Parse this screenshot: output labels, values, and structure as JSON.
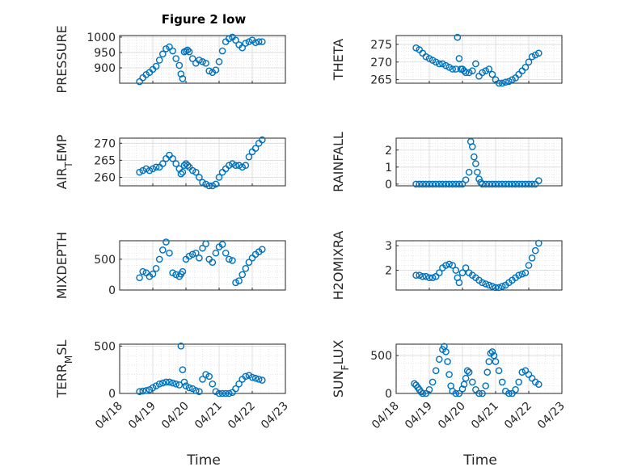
{
  "figure_title": "Figure 2 low",
  "x_axis_title": "Time",
  "marker_color": "#0072BD",
  "chart_data": [
    {
      "type": "scatter",
      "ylabel": "PRESSURE",
      "xlim": [
        "04/18",
        "04/23"
      ],
      "ylim": [
        850,
        1005
      ],
      "yticks": [
        900,
        950,
        1000
      ],
      "x": [
        0.6,
        0.7,
        0.8,
        0.9,
        1.0,
        1.1,
        1.2,
        1.3,
        1.4,
        1.5,
        1.6,
        1.7,
        1.8,
        1.85,
        1.9,
        1.95,
        2.0,
        2.05,
        2.1,
        2.2,
        2.3,
        2.4,
        2.5,
        2.6,
        2.7,
        2.8,
        2.9,
        3.0,
        3.1,
        3.2,
        3.3,
        3.4,
        3.5,
        3.6,
        3.7,
        3.8,
        3.9,
        4.0,
        4.1,
        4.2,
        4.3
      ],
      "y": [
        855,
        868,
        878,
        885,
        895,
        905,
        925,
        945,
        962,
        968,
        955,
        930,
        908,
        880,
        865,
        952,
        955,
        958,
        952,
        930,
        915,
        925,
        920,
        915,
        890,
        885,
        893,
        920,
        955,
        985,
        995,
        1000,
        990,
        975,
        965,
        980,
        985,
        990,
        982,
        985,
        985
      ]
    },
    {
      "type": "scatter",
      "ylabel": "THETA",
      "xlim": [
        "04/18",
        "04/23"
      ],
      "ylim": [
        264,
        277.5
      ],
      "yticks": [
        265,
        270,
        275
      ],
      "x": [
        0.6,
        0.7,
        0.8,
        0.9,
        1.0,
        1.1,
        1.2,
        1.3,
        1.4,
        1.5,
        1.6,
        1.7,
        1.8,
        1.85,
        1.9,
        1.95,
        2.0,
        2.05,
        2.1,
        2.2,
        2.3,
        2.4,
        2.5,
        2.6,
        2.7,
        2.8,
        2.9,
        3.0,
        3.1,
        3.2,
        3.3,
        3.4,
        3.5,
        3.6,
        3.7,
        3.8,
        3.9,
        4.0,
        4.1,
        4.2,
        4.3
      ],
      "y": [
        274,
        273.5,
        272.5,
        271.5,
        271,
        270.5,
        270,
        269.5,
        269.5,
        269,
        268.5,
        268,
        268,
        277,
        271,
        268,
        268,
        267.5,
        267,
        267,
        267.5,
        269.5,
        266,
        267,
        267.5,
        268,
        266.5,
        265,
        264,
        264,
        264.3,
        264.5,
        265,
        265.5,
        266.5,
        267.5,
        268.5,
        270,
        271.5,
        272,
        272.5
      ]
    },
    {
      "type": "scatter",
      "ylabel": "AIR_TEMP",
      "ylabel_main": "AIR",
      "ylabel_sub": "T",
      "ylabel_rest": "EMP",
      "xlim": [
        "04/18",
        "04/23"
      ],
      "ylim": [
        257.5,
        271.5
      ],
      "yticks": [
        260,
        265,
        270
      ],
      "x": [
        0.6,
        0.7,
        0.8,
        0.9,
        1.0,
        1.1,
        1.2,
        1.3,
        1.4,
        1.5,
        1.6,
        1.7,
        1.8,
        1.85,
        1.9,
        1.95,
        2.0,
        2.05,
        2.1,
        2.2,
        2.3,
        2.4,
        2.5,
        2.6,
        2.7,
        2.8,
        2.9,
        3.0,
        3.1,
        3.2,
        3.3,
        3.4,
        3.5,
        3.6,
        3.7,
        3.8,
        3.9,
        4.0,
        4.1,
        4.2,
        4.3
      ],
      "y": [
        261.5,
        262,
        262.5,
        262,
        262.5,
        263,
        263,
        264,
        265.5,
        266.5,
        265.5,
        264,
        262.5,
        261,
        261.5,
        263.5,
        264,
        263.5,
        263,
        262,
        261.5,
        260,
        258.5,
        258,
        257.5,
        257.5,
        258,
        260,
        261.5,
        262.5,
        263.5,
        264,
        263.5,
        263.5,
        263,
        263.5,
        266,
        267.5,
        268.5,
        270,
        271
      ]
    },
    {
      "type": "scatter",
      "ylabel": "RAINFALL",
      "xlim": [
        "04/18",
        "04/23"
      ],
      "ylim": [
        -0.1,
        2.7
      ],
      "yticks": [
        0,
        1,
        2
      ],
      "x": [
        0.6,
        0.7,
        0.8,
        0.9,
        1.0,
        1.1,
        1.2,
        1.3,
        1.4,
        1.5,
        1.6,
        1.7,
        1.8,
        1.9,
        2.0,
        2.1,
        2.2,
        2.25,
        2.3,
        2.35,
        2.4,
        2.45,
        2.5,
        2.55,
        2.6,
        2.7,
        2.8,
        2.9,
        3.0,
        3.1,
        3.2,
        3.3,
        3.4,
        3.5,
        3.6,
        3.7,
        3.8,
        3.9,
        4.0,
        4.1,
        4.2,
        4.3
      ],
      "y": [
        0,
        0,
        0,
        0,
        0,
        0,
        0,
        0,
        0,
        0,
        0,
        0,
        0,
        0,
        0,
        0.25,
        0.7,
        2.5,
        2.2,
        1.6,
        1.2,
        0.7,
        0.3,
        0.1,
        0,
        0,
        0,
        0,
        0,
        0,
        0,
        0,
        0,
        0,
        0,
        0,
        0,
        0,
        0,
        0,
        0,
        0.2
      ]
    },
    {
      "type": "scatter",
      "ylabel": "MIXDEPTH",
      "xlim": [
        "04/18",
        "04/23"
      ],
      "ylim": [
        0,
        800
      ],
      "yticks": [
        0,
        500
      ],
      "x": [
        0.6,
        0.7,
        0.8,
        0.9,
        1.0,
        1.1,
        1.2,
        1.3,
        1.4,
        1.5,
        1.6,
        1.7,
        1.8,
        1.85,
        1.9,
        2.0,
        2.1,
        2.2,
        2.3,
        2.4,
        2.5,
        2.6,
        2.7,
        2.8,
        2.9,
        3.0,
        3.1,
        3.2,
        3.3,
        3.4,
        3.5,
        3.6,
        3.7,
        3.8,
        3.9,
        4.0,
        4.1,
        4.2,
        4.3
      ],
      "y": [
        200,
        300,
        280,
        220,
        260,
        350,
        500,
        650,
        780,
        600,
        280,
        250,
        220,
        260,
        300,
        500,
        550,
        580,
        600,
        520,
        680,
        750,
        500,
        450,
        600,
        700,
        740,
        600,
        500,
        480,
        120,
        150,
        250,
        350,
        450,
        520,
        580,
        620,
        660
      ]
    },
    {
      "type": "scatter",
      "ylabel": "H2OMIXRA",
      "xlim": [
        "04/18",
        "04/23"
      ],
      "ylim": [
        1.2,
        3.2
      ],
      "yticks": [
        2,
        3
      ],
      "x": [
        0.6,
        0.7,
        0.8,
        0.9,
        1.0,
        1.1,
        1.2,
        1.3,
        1.4,
        1.5,
        1.6,
        1.7,
        1.8,
        1.85,
        1.9,
        2.0,
        2.1,
        2.2,
        2.3,
        2.4,
        2.5,
        2.6,
        2.7,
        2.8,
        2.9,
        3.0,
        3.1,
        3.2,
        3.3,
        3.4,
        3.5,
        3.6,
        3.7,
        3.8,
        3.9,
        4.0,
        4.1,
        4.2,
        4.3
      ],
      "y": [
        1.8,
        1.8,
        1.75,
        1.75,
        1.7,
        1.7,
        1.75,
        1.9,
        2.1,
        2.2,
        2.25,
        2.2,
        2.0,
        1.7,
        1.5,
        1.9,
        2.1,
        1.9,
        1.8,
        1.7,
        1.6,
        1.5,
        1.45,
        1.4,
        1.35,
        1.3,
        1.3,
        1.35,
        1.4,
        1.5,
        1.6,
        1.7,
        1.8,
        1.85,
        1.9,
        2.2,
        2.5,
        2.8,
        3.1
      ]
    },
    {
      "type": "scatter",
      "ylabel": "TERR_MSL",
      "ylabel_main": "TERR",
      "ylabel_sub": "M",
      "ylabel_rest": "SL",
      "xlim": [
        "04/18",
        "04/23"
      ],
      "ylim": [
        0,
        520
      ],
      "yticks": [
        0,
        500
      ],
      "x": [
        0.6,
        0.7,
        0.8,
        0.9,
        1.0,
        1.1,
        1.2,
        1.3,
        1.4,
        1.5,
        1.6,
        1.7,
        1.8,
        1.85,
        1.9,
        1.95,
        2.0,
        2.1,
        2.2,
        2.3,
        2.4,
        2.5,
        2.6,
        2.7,
        2.8,
        2.9,
        3.0,
        3.1,
        3.2,
        3.3,
        3.4,
        3.5,
        3.6,
        3.7,
        3.8,
        3.9,
        4.0,
        4.1,
        4.2,
        4.3
      ],
      "y": [
        20,
        25,
        30,
        40,
        60,
        80,
        100,
        110,
        120,
        120,
        110,
        100,
        90,
        500,
        250,
        120,
        80,
        60,
        50,
        30,
        20,
        150,
        200,
        180,
        100,
        20,
        0,
        0,
        0,
        0,
        10,
        50,
        100,
        150,
        180,
        190,
        170,
        160,
        150,
        140
      ]
    },
    {
      "type": "scatter",
      "ylabel": "SUN_FLUX",
      "ylabel_main": "SUN",
      "ylabel_sub": "F",
      "ylabel_rest": "LUX",
      "xlim": [
        "04/18",
        "04/23"
      ],
      "ylim": [
        0,
        650
      ],
      "yticks": [
        0,
        500
      ],
      "x": [
        0.55,
        0.6,
        0.65,
        0.7,
        0.75,
        0.8,
        0.9,
        1.0,
        1.1,
        1.2,
        1.3,
        1.4,
        1.45,
        1.5,
        1.55,
        1.6,
        1.65,
        1.7,
        1.8,
        1.9,
        2.0,
        2.05,
        2.1,
        2.15,
        2.2,
        2.3,
        2.4,
        2.5,
        2.6,
        2.7,
        2.75,
        2.8,
        2.85,
        2.9,
        2.95,
        3.0,
        3.1,
        3.2,
        3.3,
        3.4,
        3.5,
        3.6,
        3.7,
        3.8,
        3.9,
        4.0,
        4.1,
        4.2,
        4.3
      ],
      "y": [
        130,
        110,
        80,
        50,
        20,
        0,
        0,
        50,
        150,
        300,
        450,
        580,
        620,
        550,
        420,
        250,
        100,
        30,
        0,
        0,
        60,
        120,
        200,
        300,
        280,
        150,
        50,
        0,
        0,
        100,
        280,
        420,
        530,
        550,
        500,
        420,
        300,
        150,
        30,
        0,
        0,
        50,
        150,
        280,
        300,
        250,
        200,
        150,
        120
      ]
    }
  ]
}
